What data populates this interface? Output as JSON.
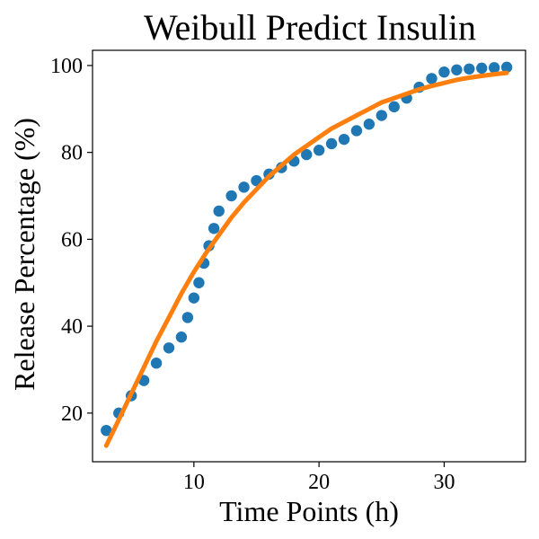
{
  "chart_data": {
    "type": "scatter",
    "title": "Weibull Predict Insulin",
    "xlabel": "Time Points (h)",
    "ylabel": "Release Percentage (%)",
    "xlim": [
      1.9,
      36.5
    ],
    "ylim": [
      8.8,
      103.5
    ],
    "xticks": [
      10,
      20,
      30
    ],
    "yticks": [
      20,
      40,
      60,
      80,
      100
    ],
    "grid": false,
    "colors": {
      "points": "#1f77b4",
      "curve": "#ff7f0e"
    },
    "series": [
      {
        "type": "scatter",
        "x": [
          3.0,
          4.0,
          5.0,
          6.0,
          7.0,
          8.0,
          9.0,
          9.5,
          10.0,
          10.4,
          10.8,
          11.2,
          11.6,
          12.0,
          13.0,
          14.0,
          15.0,
          16.0,
          17.0,
          18.0,
          19.0,
          20.0,
          21.0,
          22.0,
          23.0,
          24.0,
          25.0,
          26.0,
          27.0,
          28.0,
          29.0,
          30.0,
          31.0,
          32.0,
          33.0,
          34.0,
          35.0
        ],
        "y": [
          16.0,
          20.0,
          24.0,
          27.5,
          31.5,
          35.0,
          37.5,
          42.0,
          46.5,
          50.0,
          54.5,
          58.5,
          62.5,
          66.5,
          70.0,
          72.0,
          73.5,
          75.0,
          76.5,
          78.0,
          79.5,
          80.5,
          82.0,
          83.0,
          85.0,
          86.5,
          88.5,
          90.5,
          92.5,
          95.0,
          97.0,
          98.5,
          99.0,
          99.2,
          99.4,
          99.5,
          99.6
        ]
      },
      {
        "type": "line",
        "x": [
          3,
          4,
          5,
          6,
          7,
          8,
          9,
          10,
          11,
          12,
          13,
          14,
          15,
          16,
          17,
          18,
          19,
          20,
          21,
          22,
          23,
          24,
          25,
          26,
          27,
          28,
          29,
          30,
          31,
          32,
          33,
          34,
          35
        ],
        "y": [
          12.5,
          18.5,
          24.5,
          30.5,
          36.5,
          42.0,
          47.5,
          52.5,
          57.0,
          61.0,
          65.0,
          68.5,
          71.5,
          74.5,
          77.0,
          79.5,
          81.5,
          83.5,
          85.5,
          87.0,
          88.5,
          90.0,
          91.5,
          92.5,
          93.5,
          94.5,
          95.3,
          96.0,
          96.7,
          97.2,
          97.6,
          98.0,
          98.3
        ]
      }
    ]
  }
}
